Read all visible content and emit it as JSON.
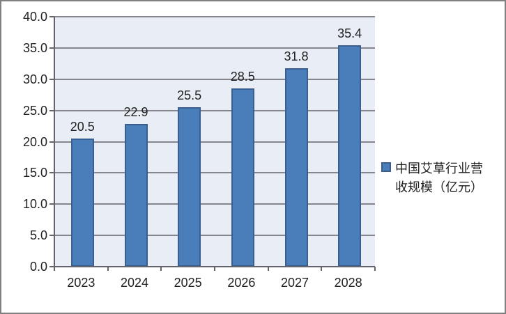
{
  "chart_data": {
    "type": "bar",
    "categories": [
      "2023",
      "2024",
      "2025",
      "2026",
      "2027",
      "2028"
    ],
    "values": [
      20.5,
      22.9,
      25.5,
      28.5,
      31.8,
      35.4
    ],
    "data_labels": [
      "20.5",
      "22.9",
      "25.5",
      "28.5",
      "31.8",
      "35.4"
    ],
    "series_name": "中国艾草行业营收规模（亿元）",
    "legend": {
      "position": "right",
      "line1": "中国艾草行业营",
      "line2": "收规模（亿元）"
    },
    "title": "",
    "xlabel": "",
    "ylabel": "",
    "ylim": [
      0,
      40
    ],
    "ytick_step": 5,
    "ytick_labels": [
      "0.0",
      "5.0",
      "10.0",
      "15.0",
      "20.0",
      "25.0",
      "30.0",
      "35.0",
      "40.0"
    ],
    "grid": true,
    "colors": {
      "bar_fill": "#4A7EBB",
      "bar_border": "#395E8F",
      "plot_background": "#E9EDF5",
      "gridline": "#85858D",
      "axis_line": "#63636B",
      "outer_border": "#808080",
      "text": "#212121"
    }
  }
}
